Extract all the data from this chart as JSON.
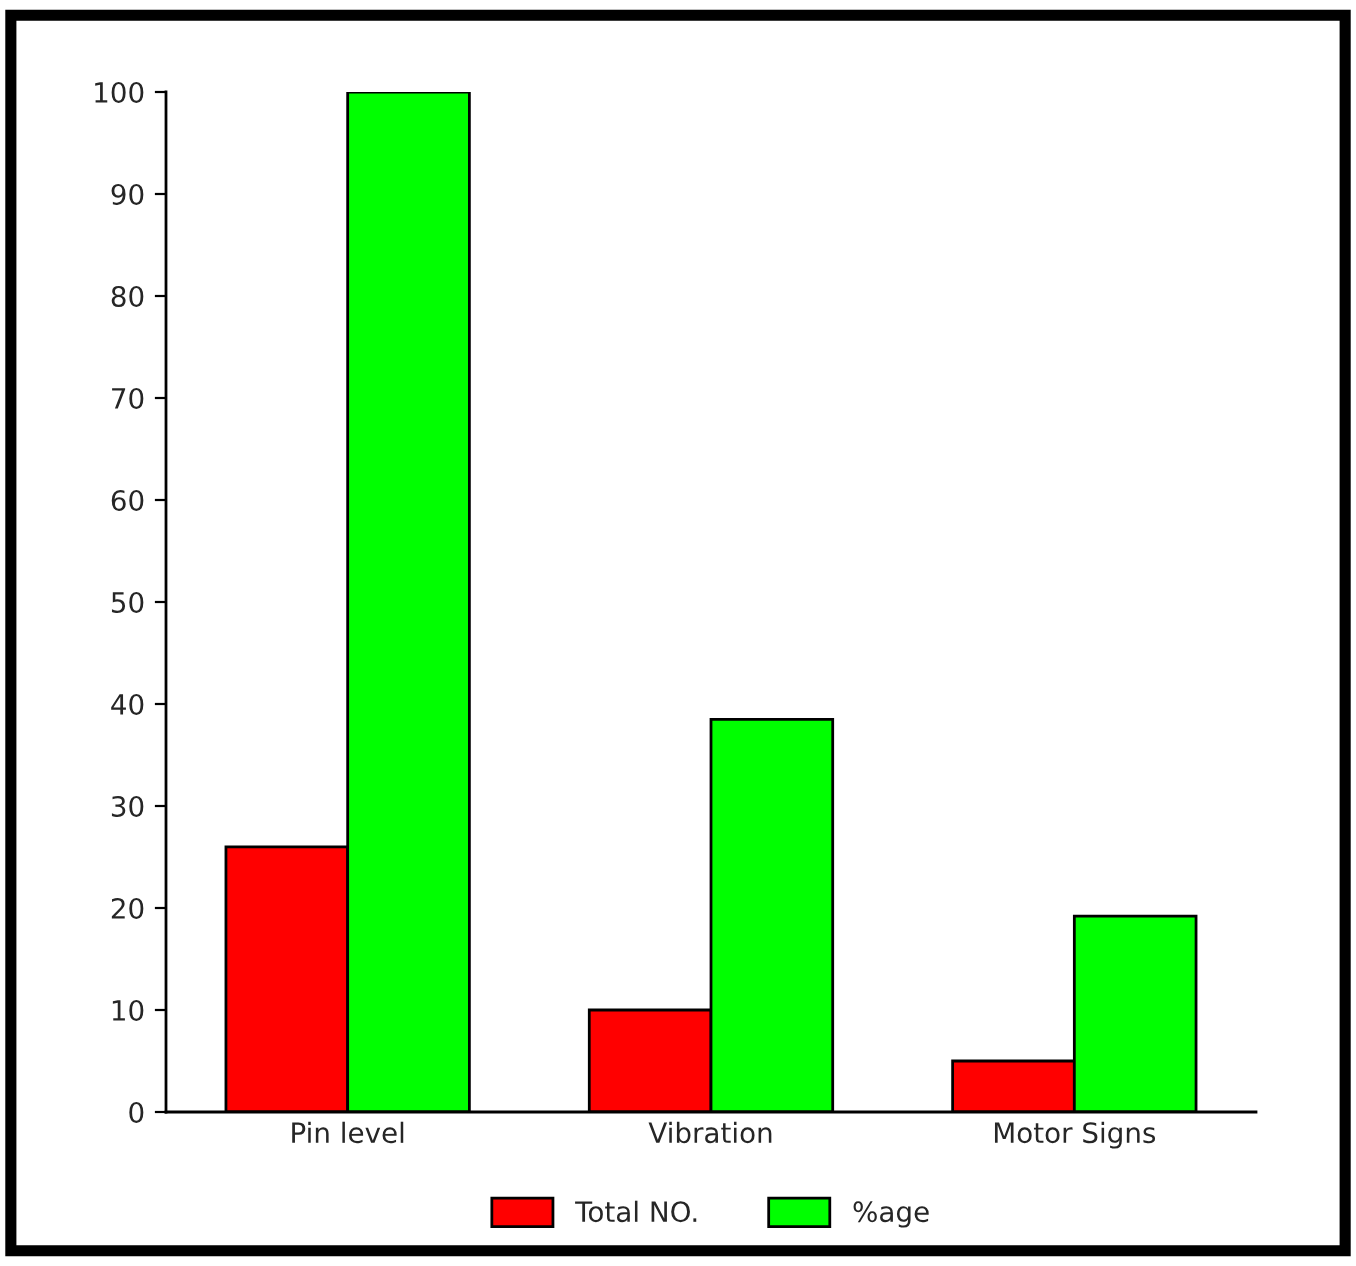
{
  "chart_data": {
    "type": "bar",
    "categories": [
      "Pin level",
      "Vibration",
      "Motor Signs"
    ],
    "series": [
      {
        "name": "Total NO.",
        "color": "#ff0000",
        "values": [
          26,
          10,
          5
        ]
      },
      {
        "name": "%age",
        "color": "#00ff00",
        "values": [
          100,
          38.5,
          19.2
        ]
      }
    ],
    "ylim": [
      0,
      100
    ],
    "yticks": [
      0,
      10,
      20,
      30,
      40,
      50,
      60,
      70,
      80,
      90,
      100
    ],
    "grid": false,
    "legend": "bottom"
  }
}
